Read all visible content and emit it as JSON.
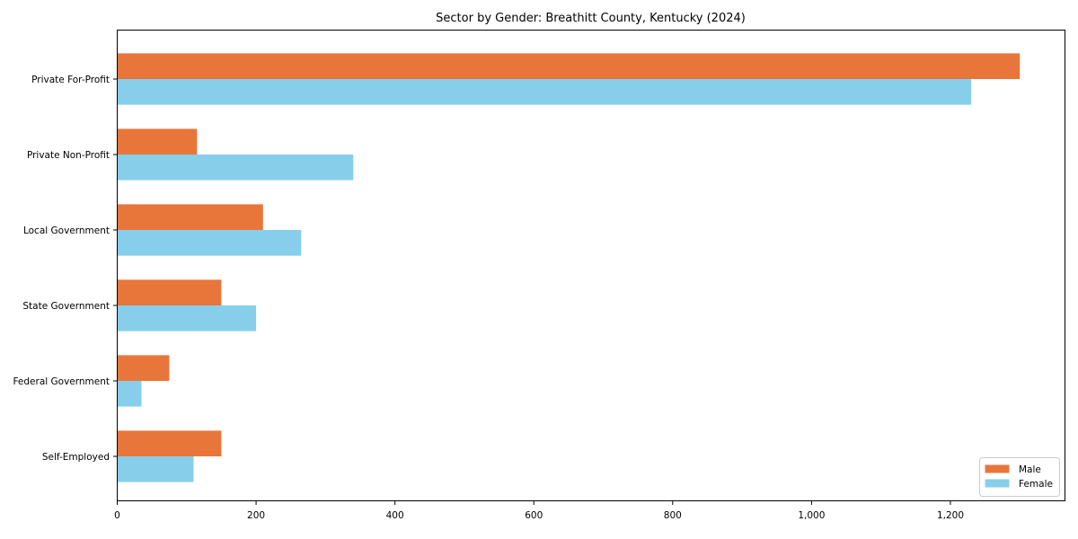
{
  "chart_data": {
    "type": "bar",
    "orientation": "horizontal",
    "title": "Sector by Gender: Breathitt County, Kentucky (2024)",
    "categories": [
      "Private For-Profit",
      "Private Non-Profit",
      "Local Government",
      "State Government",
      "Federal Government",
      "Self-Employed"
    ],
    "series": [
      {
        "name": "Male",
        "color": "#e8763b",
        "values": [
          1300,
          115,
          210,
          150,
          75,
          150
        ]
      },
      {
        "name": "Female",
        "color": "#87ceeb",
        "values": [
          1230,
          340,
          265,
          200,
          35,
          110
        ]
      }
    ],
    "xlabel": "",
    "ylabel": "",
    "xlim": [
      0,
      1365
    ],
    "xticks": [
      0,
      200,
      400,
      600,
      800,
      1000,
      1200
    ],
    "xtick_labels": [
      "0",
      "200",
      "400",
      "600",
      "800",
      "1,000",
      "1,200"
    ],
    "grid": false,
    "legend_position": "lower right",
    "axis_color": "#000000",
    "background_color": "#ffffff",
    "legend_border_color": "#cccccc"
  }
}
